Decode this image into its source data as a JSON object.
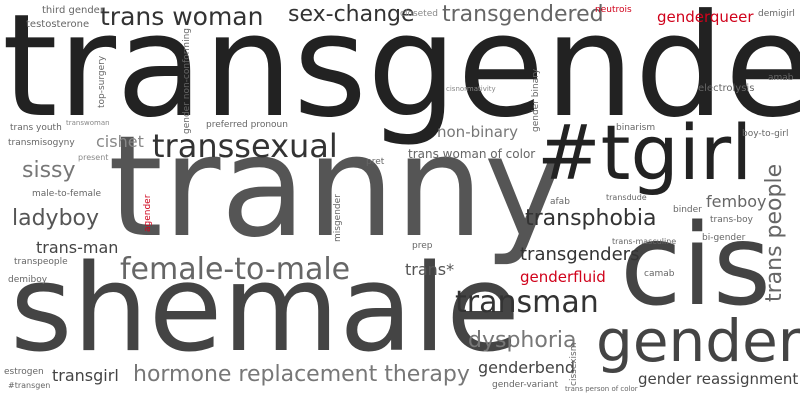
{
  "colors": {
    "dark": "#222222",
    "mid": "#555555",
    "light": "#888888",
    "highlight": "#d0021b"
  },
  "words": {
    "transgender": "transgender",
    "tranny": "tranny",
    "shemale": "shemale",
    "cis": "cis",
    "tgirl": "#tgirl",
    "gender": "gender",
    "transsexual": "transsexual",
    "female_to_male": "female-to-male",
    "trans_woman": "trans woman",
    "sex_change": "sex-change",
    "transgendered": "transgendered",
    "genderqueer": "genderqueer",
    "transman": "transman",
    "hrt": "hormone replacement therapy",
    "dysphoria": "dysphoria",
    "transphobia": "transphobia",
    "transgenders": "transgenders",
    "trans_people": "trans people",
    "femboy": "femboy",
    "ladyboy": "ladyboy",
    "sissy": "sissy",
    "cishet": "cishet",
    "trans_man": "trans-man",
    "transgirl": "transgirl",
    "genderbend": "genderbend",
    "gender_reassignment": "gender reassignment",
    "genderfluid": "genderfluid",
    "trans_star": "trans*",
    "non_binary": "non-binary",
    "trans_woman_of_color": "trans woman of color",
    "third_gender": "third gender",
    "testosterone": "testosterone",
    "closeted": "closeted",
    "neutrois": "neutrois",
    "demigirl": "demigirl",
    "amab": "amab",
    "electrolysis": "electrolysis",
    "cisnormativity": "cisnormativity",
    "gender_binary": "gender binary",
    "binarism": "binarism",
    "boy_to_girl": "boy-to-girl",
    "top_surgery": "top-surgery",
    "gender_non_conforming": "gender non-conforming",
    "trans_youth": "trans youth",
    "transwoman": "transwoman",
    "preferred_pronoun": "preferred pronoun",
    "transmisogyny": "transmisogyny",
    "present": "present",
    "pret": "pret",
    "male_to_female": "male-to-female",
    "agender": "agender",
    "misgender": "misgender",
    "afab": "afab",
    "transdude": "transdude",
    "binder": "binder",
    "trans_boy": "trans-boy",
    "trans_masculine": "trans-masculine",
    "bi_gender": "bi-gender",
    "prep": "prep",
    "transpeople": "transpeople",
    "camab": "camab",
    "demiboy": "demiboy",
    "estrogen": "estrogen",
    "transgen": "#transgen",
    "gender_variant": "gender-variant",
    "cissexism": "cissexism",
    "trans_person_of_color": "trans person of color"
  }
}
